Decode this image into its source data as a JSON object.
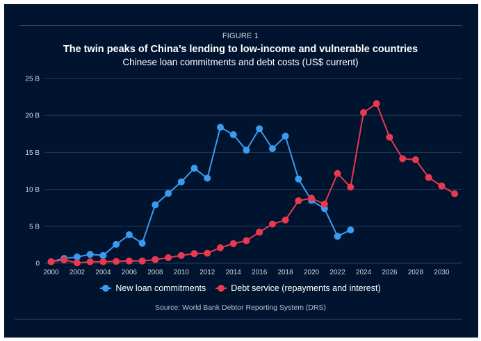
{
  "figure_label": "FIGURE 1",
  "title": "The twin peaks of China’s lending to low-income and vulnerable countries",
  "subtitle": "Chinese loan commitments and debt costs (US$ current)",
  "source": "Source: World Bank Debtor Reporting System (DRS)",
  "colors": {
    "background": "#00142f",
    "new_loans": "#3a9bf0",
    "debt_service": "#e8394f",
    "grid": "#2a3a58"
  },
  "chart_data": {
    "type": "line",
    "title": "The twin peaks of China’s lending to low-income and vulnerable countries",
    "subtitle": "Chinese loan commitments and debt costs (US$ current)",
    "xlabel": "",
    "ylabel": "",
    "unit": "US$ billions",
    "xlim": [
      2000,
      2031
    ],
    "ylim": [
      0,
      25
    ],
    "grid": true,
    "legend_position": "bottom-center",
    "x_ticks": [
      2000,
      2002,
      2004,
      2006,
      2008,
      2010,
      2012,
      2014,
      2016,
      2018,
      2020,
      2022,
      2024,
      2026,
      2028,
      2030
    ],
    "x_tick_labels": [
      "2000",
      "2002",
      "2004",
      "2006",
      "2008",
      "2010",
      "2012",
      "2014",
      "2016",
      "2018",
      "2020",
      "2022",
      "2024",
      "2026",
      "2028",
      "2030"
    ],
    "y_ticks": [
      0,
      5,
      10,
      15,
      20,
      25
    ],
    "y_tick_labels": [
      "0",
      "5 B",
      "10 B",
      "15 B",
      "20 B",
      "25 B"
    ],
    "series": [
      {
        "name": "New loan commitments",
        "color": "#3a9bf0",
        "x": [
          2000,
          2001,
          2002,
          2003,
          2004,
          2005,
          2006,
          2007,
          2008,
          2009,
          2010,
          2011,
          2012,
          2013,
          2014,
          2015,
          2016,
          2017,
          2018,
          2019,
          2020,
          2021,
          2022,
          2023
        ],
        "values": [
          0.2,
          0.65,
          0.85,
          1.2,
          1.05,
          2.55,
          3.85,
          2.7,
          7.9,
          9.45,
          11.0,
          12.85,
          11.5,
          18.4,
          17.4,
          15.3,
          18.2,
          15.5,
          17.2,
          11.4,
          8.5,
          7.4,
          3.65,
          4.5
        ]
      },
      {
        "name": "Debt service (repayments and interest)",
        "color": "#e8394f",
        "x": [
          2000,
          2001,
          2002,
          2003,
          2004,
          2005,
          2006,
          2007,
          2008,
          2009,
          2010,
          2011,
          2012,
          2013,
          2014,
          2015,
          2016,
          2017,
          2018,
          2019,
          2020,
          2021,
          2022,
          2023,
          2024,
          2025,
          2026,
          2027,
          2028,
          2029,
          2030,
          2031
        ],
        "values": [
          0.2,
          0.45,
          0.05,
          0.2,
          0.2,
          0.25,
          0.3,
          0.3,
          0.5,
          0.75,
          1.05,
          1.3,
          1.35,
          2.1,
          2.65,
          3.05,
          4.2,
          5.3,
          5.85,
          8.45,
          8.8,
          8.0,
          12.15,
          10.3,
          20.4,
          21.6,
          17.05,
          14.15,
          14.0,
          11.6,
          10.45,
          9.4
        ]
      }
    ]
  }
}
